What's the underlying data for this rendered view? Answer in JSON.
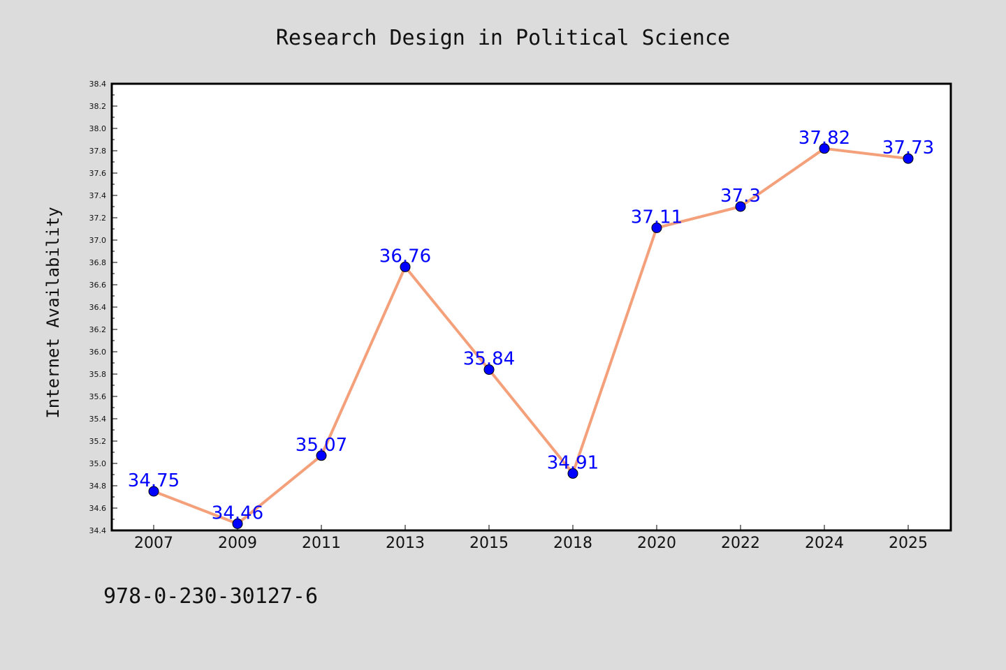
{
  "chart_data": {
    "type": "line",
    "title": "Research Design in Political Science",
    "xlabel": "",
    "ylabel": "Internet Availability",
    "categories": [
      "2007",
      "2009",
      "2011",
      "2013",
      "2015",
      "2018",
      "2020",
      "2022",
      "2024",
      "2025"
    ],
    "series": [
      {
        "values": [
          34.75,
          34.46,
          35.07,
          36.76,
          35.84,
          34.91,
          37.11,
          37.3,
          37.82,
          37.73
        ],
        "labels": [
          "34.75",
          "34.46",
          "35.07",
          "36.76",
          "35.84",
          "34.91",
          "37.11",
          "37.3",
          "37.82",
          "37.73"
        ],
        "line_color": "#f4a07a",
        "marker_color": "#0000ff"
      }
    ],
    "ylim": [
      34.4,
      38.4
    ],
    "yticks": [
      "34.4",
      "34.6",
      "34.8",
      "35.0",
      "35.2",
      "35.4",
      "35.6",
      "35.8",
      "36.0",
      "36.2",
      "36.4",
      "36.6",
      "36.8",
      "37.0",
      "37.2",
      "37.4",
      "37.6",
      "37.8",
      "38.0",
      "38.2",
      "38.4"
    ],
    "grid": false,
    "legend": "none",
    "background": "#dcdcdc",
    "plot_background": "#ffffff"
  },
  "footer": {
    "isbn": "978-0-230-30127-6"
  }
}
